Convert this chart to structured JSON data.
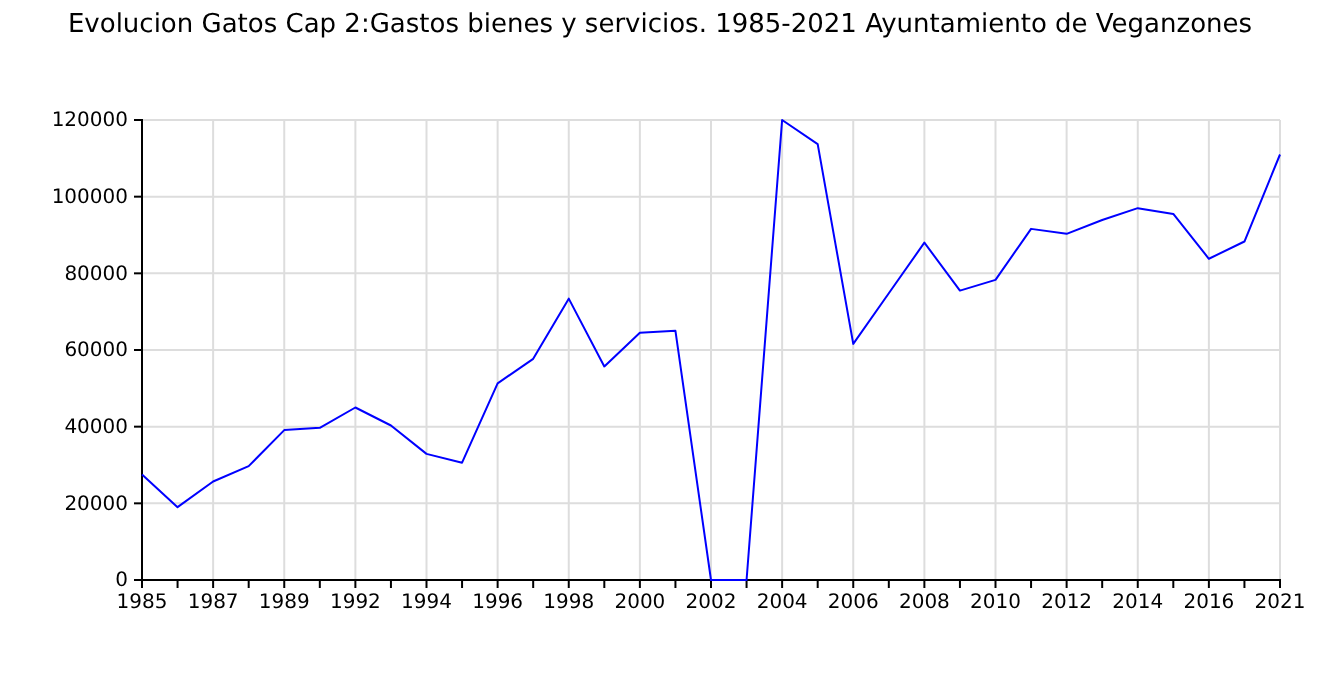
{
  "chart_data": {
    "type": "line",
    "title": "Evolucion Gatos Cap 2:Gastos bienes y servicios. 1985-2021 Ayuntamiento de Veganzones",
    "categories": [
      "1985",
      null,
      "1987",
      null,
      "1989",
      null,
      "1992",
      null,
      "1994",
      null,
      "1996",
      null,
      "1998",
      null,
      "2000",
      null,
      "2002",
      null,
      "2004",
      null,
      "2006",
      null,
      "2008",
      null,
      "2010",
      null,
      "2012",
      null,
      "2014",
      null,
      "2016",
      null,
      "2021"
    ],
    "series": [
      {
        "color": "#0000ff",
        "values": [
          27500,
          19000,
          25700,
          29700,
          39100,
          39700,
          45000,
          40300,
          32900,
          30600,
          51300,
          57700,
          73400,
          55700,
          64500,
          65000,
          0,
          0,
          120000,
          113700,
          61600,
          74800,
          88000,
          75500,
          78300,
          91600,
          90300,
          93900,
          97000,
          95500,
          83800,
          88300,
          111000
        ]
      }
    ],
    "ylim": [
      0,
      120000
    ],
    "yticks": [
      0,
      20000,
      40000,
      60000,
      80000,
      100000,
      120000
    ],
    "grid": true,
    "legend": false,
    "marker": "none",
    "line_style": "solid"
  }
}
